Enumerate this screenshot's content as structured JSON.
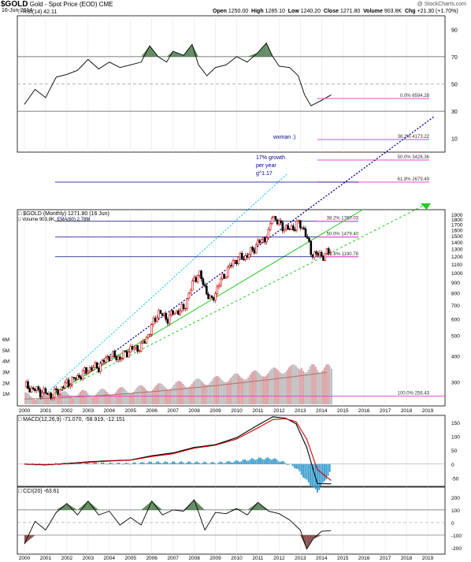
{
  "header": {
    "ticker": "$GOLD",
    "name": "Gold - Spot Price (EOD)",
    "exchange": "CME",
    "date": "16-Jun-2014",
    "open_label": "Open",
    "open": "1250.00",
    "high_label": "High",
    "high": "1285.10",
    "low_label": "Low",
    "low": "1240.20",
    "close_label": "Close",
    "close": "1271.80",
    "volume_label": "Volume",
    "volume": "903.8K",
    "chg_label": "Chg",
    "chg": "+21.30 (+1.70%)",
    "copyright": "@ StockCharts.com"
  },
  "colors": {
    "candle_up": "#cc0000",
    "candle_down": "#000000",
    "blue_channel": "#00008b",
    "cyan_channel": "#00cccc",
    "green_channel": "#22cc22",
    "fib_line": "#ee44cc",
    "rsi_fill": "#4a7a4a",
    "macd_line": "#000000",
    "macd_signal": "#cc0000",
    "macd_hist": "#3399cc",
    "volume_bar": "#d89ca0",
    "volume_ema": "#b07070"
  },
  "chart_data": [
    {
      "panel": "rsi",
      "type": "line",
      "title": "RSI(14) 42.11",
      "y_ticks": [
        "90",
        "70",
        "50",
        "30",
        "10"
      ],
      "ylim": [
        0,
        100
      ],
      "series": [
        {
          "name": "RSI(14)",
          "x": [
            2000.0,
            2000.5,
            2001.0,
            2001.5,
            2002.0,
            2002.5,
            2003.0,
            2003.5,
            2004.0,
            2004.5,
            2005.0,
            2005.5,
            2005.9,
            2006.3,
            2006.7,
            2007.0,
            2007.5,
            2007.9,
            2008.2,
            2008.6,
            2009.0,
            2009.5,
            2010.0,
            2010.5,
            2011.0,
            2011.4,
            2011.7,
            2012.0,
            2012.5,
            2012.9,
            2013.2,
            2013.5,
            2014.0,
            2014.45
          ],
          "values": [
            35,
            46,
            40,
            55,
            57,
            60,
            68,
            61,
            66,
            62,
            64,
            66,
            78,
            70,
            66,
            74,
            71,
            79,
            64,
            56,
            62,
            64,
            70,
            66,
            73,
            80,
            70,
            63,
            62,
            56,
            42,
            34,
            38,
            42
          ]
        }
      ],
      "annotations": [
        "wxman :)",
        "17% growth",
        "per year",
        "g^1.17"
      ],
      "fib_labels": [
        "0.0% 6594.28",
        "38.2% 4173.22",
        "50.0% 3426.36",
        "61.8% 2679.49"
      ]
    },
    {
      "panel": "price",
      "type": "candlestick",
      "title": "$GOLD (Monthly) 1271.80 (16 Jun)",
      "legend": "Volume 903.8K, EMA(60) 2.78M",
      "y_scale": "log",
      "y_ticks": [
        "1900",
        "1800",
        "1700",
        "1600",
        "1500",
        "1400",
        "1300",
        "1200",
        "1100",
        "1000",
        "900",
        "800",
        "700",
        "600",
        "500",
        "400",
        "300"
      ],
      "vol_ticks": [
        "6M",
        "5M",
        "4M",
        "3M",
        "2M",
        "1M"
      ],
      "x_ticks": [
        "2000",
        "2001",
        "2002",
        "2003",
        "2004",
        "2005",
        "2006",
        "2007",
        "2008",
        "2009",
        "2010",
        "2011",
        "2012",
        "2013",
        "2014",
        "2015",
        "2016",
        "2017",
        "2018",
        "2019"
      ],
      "series": [
        {
          "name": "$GOLD",
          "x": [
            2000.0,
            2000.5,
            2001.0,
            2001.3,
            2002.0,
            2002.5,
            2003.0,
            2003.5,
            2004.0,
            2004.5,
            2005.0,
            2005.5,
            2005.9,
            2006.3,
            2006.7,
            2007.0,
            2007.5,
            2008.0,
            2008.2,
            2008.8,
            2009.2,
            2009.9,
            2010.5,
            2011.0,
            2011.5,
            2011.67,
            2012.0,
            2012.5,
            2012.9,
            2013.2,
            2013.5,
            2014.0,
            2014.45
          ],
          "values": [
            285,
            275,
            265,
            258,
            295,
            315,
            345,
            355,
            400,
            390,
            430,
            440,
            520,
            650,
            600,
            640,
            670,
            930,
            1000,
            720,
            900,
            1150,
            1200,
            1380,
            1520,
            1900,
            1700,
            1600,
            1720,
            1600,
            1250,
            1200,
            1272
          ]
        }
      ],
      "fib_labels": [
        "38.2% 1760.03",
        "50.0% 1479.40",
        "61.8% 1190.78",
        "100.0% 256.43"
      ]
    },
    {
      "panel": "macd",
      "type": "line",
      "title": "MACD(12,26,9) -71.070, -58.919, -12.151",
      "y_ticks": [
        "150",
        "100",
        "50",
        "0",
        "-50"
      ],
      "ylim": [
        -80,
        175
      ],
      "series": [
        {
          "name": "MACD(12,26,9)",
          "x": [
            2000,
            2001,
            2002,
            2003,
            2004,
            2005,
            2006,
            2007,
            2008,
            2009,
            2010,
            2011,
            2011.7,
            2012.3,
            2012.8,
            2013.3,
            2013.8,
            2014.45
          ],
          "values": [
            0,
            -3,
            2,
            8,
            12,
            15,
            30,
            40,
            60,
            70,
            95,
            140,
            170,
            165,
            145,
            60,
            -70,
            -71
          ]
        },
        {
          "name": "signal",
          "x": [
            2000,
            2001,
            2002,
            2003,
            2004,
            2005,
            2006,
            2007,
            2008,
            2009,
            2010,
            2011,
            2011.7,
            2012.3,
            2012.8,
            2013.3,
            2013.8,
            2014.45
          ],
          "values": [
            0,
            -2,
            1,
            6,
            11,
            14,
            27,
            37,
            57,
            68,
            90,
            130,
            160,
            163,
            152,
            90,
            -20,
            -59
          ]
        }
      ]
    },
    {
      "panel": "cci",
      "type": "line",
      "title": "CCI(20) -63.61",
      "y_ticks": [
        "200",
        "100",
        "0",
        "-100",
        "-200"
      ],
      "ylim": [
        -250,
        280
      ],
      "series": [
        {
          "name": "CCI(20)",
          "x": [
            2000,
            2000.5,
            2001,
            2001.5,
            2002,
            2002.5,
            2003,
            2003.5,
            2004,
            2004.5,
            2005,
            2005.5,
            2006,
            2006.5,
            2007,
            2007.5,
            2008,
            2008.5,
            2009,
            2009.5,
            2010,
            2010.5,
            2011,
            2011.5,
            2012,
            2012.5,
            2013,
            2013.3,
            2013.6,
            2014,
            2014.45
          ],
          "values": [
            -170,
            10,
            -60,
            80,
            150,
            60,
            170,
            60,
            90,
            -20,
            40,
            -20,
            170,
            60,
            100,
            90,
            180,
            -60,
            80,
            70,
            110,
            60,
            160,
            90,
            70,
            20,
            -60,
            -210,
            -130,
            -70,
            -64
          ]
        }
      ]
    }
  ]
}
